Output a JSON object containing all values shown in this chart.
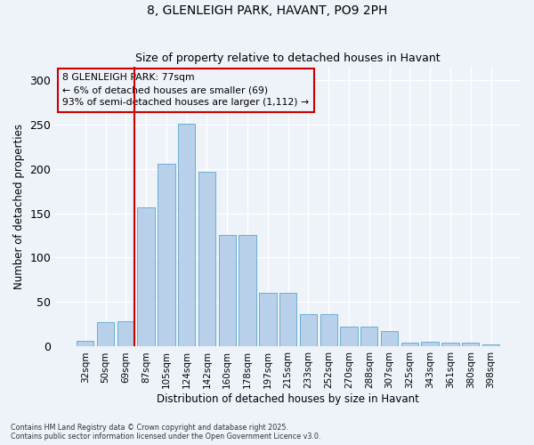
{
  "title": "8, GLENLEIGH PARK, HAVANT, PO9 2PH",
  "subtitle": "Size of property relative to detached houses in Havant",
  "xlabel": "Distribution of detached houses by size in Havant",
  "ylabel": "Number of detached properties",
  "categories": [
    "32sqm",
    "50sqm",
    "69sqm",
    "87sqm",
    "105sqm",
    "124sqm",
    "142sqm",
    "160sqm",
    "178sqm",
    "197sqm",
    "215sqm",
    "233sqm",
    "252sqm",
    "270sqm",
    "288sqm",
    "307sqm",
    "325sqm",
    "343sqm",
    "361sqm",
    "380sqm",
    "398sqm"
  ],
  "values": [
    6,
    27,
    28,
    157,
    206,
    251,
    197,
    125,
    125,
    60,
    60,
    36,
    36,
    22,
    22,
    17,
    4,
    5,
    4,
    4,
    2
  ],
  "bar_color": "#b8d0ea",
  "bar_edge_color": "#6aaed6",
  "vline_color": "#cc0000",
  "annotation_text": "8 GLENLEIGH PARK: 77sqm\n← 6% of detached houses are smaller (69)\n93% of semi-detached houses are larger (1,112) →",
  "annotation_box_color": "#cc0000",
  "background_color": "#eef2f9",
  "grid_color": "#ffffff",
  "ylim": [
    0,
    315
  ],
  "yticks": [
    0,
    50,
    100,
    150,
    200,
    250,
    300
  ],
  "footer": "Contains HM Land Registry data © Crown copyright and database right 2025.\nContains public sector information licensed under the Open Government Licence v3.0."
}
